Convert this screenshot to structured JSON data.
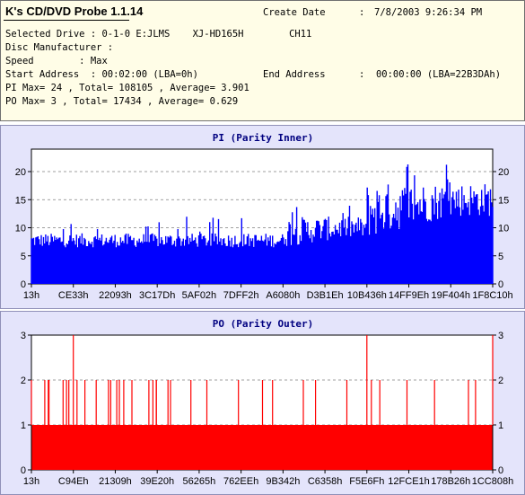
{
  "app": {
    "title": "K's CD/DVD Probe 1.1.14"
  },
  "info": {
    "create_date_label": "Create Date",
    "create_date_sep": ":",
    "create_date_value": "7/8/2003 9:26:34 PM",
    "selected_drive_line": "Selected Drive : 0-1-0 E:JLMS    XJ-HD165H        CH11",
    "disc_manufacturer_line": "Disc Manufacturer :",
    "speed_line": "Speed        : Max",
    "start_address_line": "Start Address  : 00:02:00 (LBA=0h)",
    "end_address_label": "End Address",
    "end_address_value": ":  00:00:00 (LBA=22B3DAh)",
    "pi_stats_line": "PI Max= 24 , Total= 108105 , Average= 3.901",
    "po_stats_line": "PO Max= 3 , Total= 17434 , Average= 0.629"
  },
  "chart_data": [
    {
      "type": "bar",
      "title": "PI (Parity Inner)",
      "color": "#0000ff",
      "ylim": [
        0,
        24
      ],
      "yticks": [
        0,
        5,
        10,
        15,
        20
      ],
      "grid": true,
      "x_tick_labels": [
        "13h",
        "CE33h",
        "22093h",
        "3C17Dh",
        "5AF02h",
        "7DFF2h",
        "A6080h",
        "D3B1Eh",
        "10B436h",
        "14FF9Eh",
        "19F404h",
        "1F8C10h"
      ],
      "segments": [
        {
          "label_from": "13h",
          "label_to": "A6080h",
          "base": 6.5,
          "typical_max": 9,
          "peak": 12
        },
        {
          "label_from": "A6080h",
          "label_to": "10B436h",
          "base": 8,
          "typical_max": 12,
          "peak": 14
        },
        {
          "label_from": "10B436h",
          "label_to": "1F8C10h",
          "base": 12,
          "typical_max": 18,
          "peak": 24
        }
      ],
      "max": 24,
      "average": 3.901
    },
    {
      "type": "bar",
      "title": "PO (Parity Outer)",
      "color": "#ff0000",
      "ylim": [
        0,
        3
      ],
      "yticks": [
        0,
        1,
        2,
        3
      ],
      "grid": true,
      "x_tick_labels": [
        "13h",
        "C94Eh",
        "21309h",
        "39E20h",
        "56265h",
        "762EEh",
        "9B342h",
        "C6358h",
        "F5E6Fh",
        "12FCE1h",
        "178B26h",
        "1CC808h"
      ],
      "baseline_value": 1,
      "spikes_to_2_near": [
        "13h",
        "C94Eh",
        "21309h",
        "39E20h",
        "56265h",
        "762EEh",
        "9B342h",
        "C6358h",
        "F5E6Fh",
        "12FCE1h",
        "178B26h",
        "1CC808h"
      ],
      "spikes_to_3_near": [
        "C94Eh",
        "F5E6Fh",
        "1CC808h"
      ],
      "max": 3,
      "average": 0.629
    }
  ]
}
